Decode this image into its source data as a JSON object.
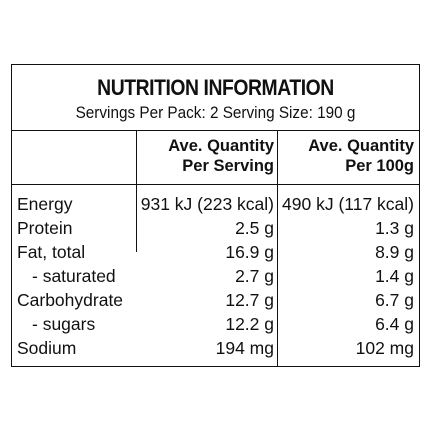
{
  "panel": {
    "title": "NUTRITION INFORMATION",
    "servings_line": "Servings Per Pack: 2   Serving Size: 190 g"
  },
  "columns": {
    "per_serving": [
      "Ave. Quantity",
      "Per Serving"
    ],
    "per_100g": [
      "Ave. Quantity",
      "Per 100g"
    ]
  },
  "rows": [
    {
      "label": "Energy",
      "per_serving": "931 kJ (223 kcal)",
      "per_100g": "490 kJ (117 kcal)",
      "indent": false
    },
    {
      "label": "Protein",
      "per_serving": "2.5 g",
      "per_100g": "1.3 g",
      "indent": false
    },
    {
      "label": "Fat, total",
      "per_serving": "16.9 g",
      "per_100g": "8.9 g",
      "indent": false
    },
    {
      "label": "- saturated",
      "per_serving": "2.7 g",
      "per_100g": "1.4 g",
      "indent": true
    },
    {
      "label": "Carbohydrate",
      "per_serving": "12.7 g",
      "per_100g": "6.7 g",
      "indent": false
    },
    {
      "label": "- sugars",
      "per_serving": "12.2 g",
      "per_100g": "6.4 g",
      "indent": true
    },
    {
      "label": "Sodium",
      "per_serving": "194 mg",
      "per_100g": "102 mg",
      "indent": false
    }
  ]
}
